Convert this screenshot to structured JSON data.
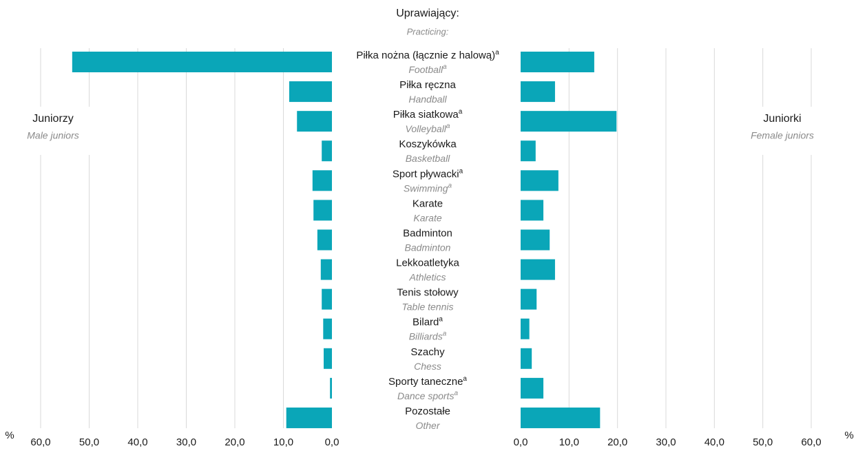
{
  "chart_data": {
    "type": "butterfly-bar",
    "title": "Uprawiający:",
    "subtitle": "Practicing:",
    "left_label": "Juniorzy",
    "left_label_en": "Male juniors",
    "right_label": "Juniorki",
    "right_label_en": "Female juniors",
    "unit": "%",
    "categories": [
      "Piłka nożna (łącznie z halową)",
      "Piłka ręczna",
      "Piłka siatkowa",
      "Koszykówka",
      "Sport pływacki",
      "Karate",
      "Badminton",
      "Lekkoatletyka",
      "Tenis stołowy",
      "Bilard",
      "Szachy",
      "Sporty taneczne",
      "Pozostałe"
    ],
    "categories_en": [
      "Football",
      "Handball",
      "Volleyball",
      "Basketball",
      "Swimming",
      "Karate",
      "Badminton",
      "Athletics",
      "Table tennis",
      "Billiards",
      "Chess",
      "Dance sports",
      "Other"
    ],
    "footnote_marks": [
      "a",
      null,
      "a",
      null,
      "a",
      null,
      null,
      null,
      null,
      "a",
      null,
      "a",
      null
    ],
    "series": [
      {
        "name": "Juniorzy",
        "side": "left",
        "color": "#0aa6b8",
        "values": [
          53.5,
          8.8,
          7.2,
          2.1,
          4.0,
          3.8,
          3.0,
          2.3,
          2.1,
          1.8,
          1.7,
          0.4,
          9.4
        ]
      },
      {
        "name": "Juniorki",
        "side": "right",
        "color": "#0aa6b8",
        "values": [
          15.2,
          7.1,
          19.8,
          3.1,
          7.8,
          4.7,
          6.0,
          7.1,
          3.3,
          1.8,
          2.3,
          4.7,
          16.4
        ]
      }
    ],
    "xlim": [
      0,
      60
    ],
    "xticks": [
      {
        "value": 0,
        "label": "0,0"
      },
      {
        "value": 10,
        "label": "10,0"
      },
      {
        "value": 20,
        "label": "20,0"
      },
      {
        "value": 30,
        "label": "30,0"
      },
      {
        "value": 40,
        "label": "40,0"
      },
      {
        "value": 50,
        "label": "50,0"
      },
      {
        "value": 60,
        "label": "60,0"
      }
    ],
    "grid": true
  }
}
